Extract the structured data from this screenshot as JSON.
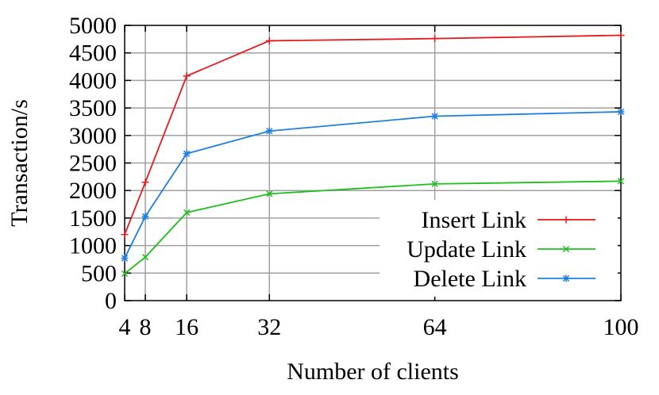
{
  "chart_data": {
    "type": "line",
    "xlabel": "Number of clients",
    "ylabel": "Transaction/s",
    "x": [
      4,
      8,
      16,
      32,
      64,
      100
    ],
    "x_ticks": [
      "4",
      "8",
      "16",
      "32",
      "64",
      "100"
    ],
    "y_ticks": [
      "0",
      "500",
      "1000",
      "1500",
      "2000",
      "2500",
      "3000",
      "3500",
      "4000",
      "4500",
      "5000"
    ],
    "xlim": [
      4,
      100
    ],
    "ylim": [
      0,
      5000
    ],
    "grid": true,
    "legend_position": "bottom-right",
    "series": [
      {
        "name": "Insert Link",
        "color": "#e41a1c",
        "marker": "plus",
        "values": [
          1200,
          2150,
          4080,
          4720,
          4760,
          4820
        ]
      },
      {
        "name": "Update Link",
        "color": "#1fbf1f",
        "marker": "cross",
        "values": [
          490,
          790,
          1600,
          1940,
          2120,
          2170
        ]
      },
      {
        "name": "Delete Link",
        "color": "#1f7fe0",
        "marker": "star",
        "values": [
          770,
          1530,
          2670,
          3080,
          3350,
          3430
        ]
      }
    ]
  }
}
